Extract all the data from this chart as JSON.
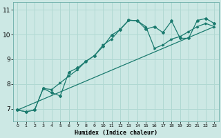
{
  "title": "",
  "xlabel": "Humidex (Indice chaleur)",
  "bg_color": "#cce8e4",
  "grid_color": "#b0d8d2",
  "line_color": "#1a7a6e",
  "xlim": [
    -0.5,
    23.5
  ],
  "ylim": [
    6.5,
    11.3
  ],
  "yticks": [
    7,
    8,
    9,
    10,
    11
  ],
  "xticks": [
    0,
    1,
    2,
    3,
    4,
    5,
    6,
    7,
    8,
    9,
    10,
    11,
    12,
    13,
    14,
    15,
    16,
    17,
    18,
    19,
    20,
    21,
    22,
    23
  ],
  "line1_x": [
    0,
    1,
    2,
    3,
    4,
    5,
    6,
    7,
    8,
    9,
    10,
    11,
    12,
    13,
    14,
    15,
    16,
    17,
    18,
    19,
    20,
    21,
    22,
    23
  ],
  "line1_y": [
    6.95,
    6.88,
    6.95,
    7.82,
    7.65,
    7.52,
    8.48,
    8.65,
    8.92,
    9.15,
    9.52,
    9.98,
    10.2,
    10.58,
    10.56,
    10.22,
    10.32,
    10.08,
    10.55,
    9.85,
    9.85,
    10.57,
    10.65,
    10.45
  ],
  "line2_x": [
    0,
    1,
    2,
    3,
    4,
    5,
    6,
    7,
    8,
    9,
    10,
    11,
    12,
    13,
    14,
    15,
    16,
    17,
    18,
    19,
    20,
    21,
    22,
    23
  ],
  "line2_y": [
    6.95,
    6.88,
    6.95,
    7.82,
    7.78,
    8.05,
    8.32,
    8.58,
    8.92,
    9.15,
    9.58,
    9.82,
    10.22,
    10.58,
    10.56,
    10.32,
    9.45,
    9.58,
    9.82,
    9.92,
    10.12,
    10.32,
    10.45,
    10.32
  ],
  "line3_x": [
    0,
    23
  ],
  "line3_y": [
    6.95,
    10.32
  ]
}
